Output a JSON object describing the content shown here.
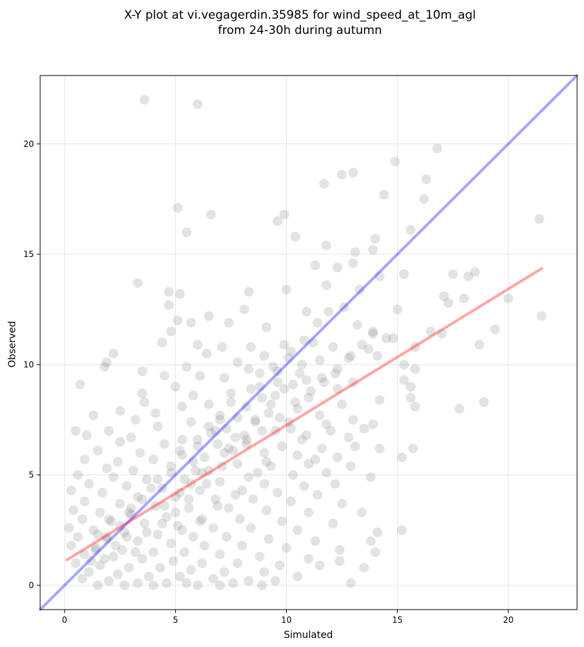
{
  "chart_data": {
    "type": "scatter",
    "title_line1": "X-Y plot at vi.vegagerdin.35985 for wind_speed_at_10m_agl",
    "title_line2": "from 24-30h during autumn",
    "xlabel": "Simulated",
    "ylabel": "Observed",
    "xlim": [
      -1.1,
      23.1
    ],
    "ylim": [
      -1.1,
      23.1
    ],
    "xticks": [
      0,
      5,
      10,
      15,
      20
    ],
    "yticks": [
      0,
      5,
      10,
      15,
      20
    ],
    "grid": true,
    "point_color": "#808080",
    "identity_line": {
      "x": [
        -1.1,
        23.1
      ],
      "y": [
        -1.1,
        23.1
      ],
      "color": "#0000ff"
    },
    "fit_line": {
      "x": [
        0.1,
        21.5
      ],
      "y": [
        1.15,
        14.35
      ],
      "color": "#ff0000"
    },
    "points": [
      [
        3.6,
        22.0
      ],
      [
        6.0,
        21.8
      ],
      [
        16.8,
        19.8
      ],
      [
        14.9,
        19.2
      ],
      [
        13.0,
        18.7
      ],
      [
        12.5,
        18.6
      ],
      [
        16.3,
        18.4
      ],
      [
        11.7,
        18.2
      ],
      [
        14.4,
        17.7
      ],
      [
        16.2,
        17.5
      ],
      [
        5.1,
        17.1
      ],
      [
        6.6,
        16.8
      ],
      [
        9.9,
        16.8
      ],
      [
        9.6,
        16.5
      ],
      [
        21.4,
        16.6
      ],
      [
        15.6,
        16.1
      ],
      [
        5.5,
        16.0
      ],
      [
        14.0,
        15.7
      ],
      [
        10.4,
        15.8
      ],
      [
        11.8,
        15.4
      ],
      [
        13.9,
        15.2
      ],
      [
        13.1,
        15.1
      ],
      [
        13.0,
        14.6
      ],
      [
        12.3,
        14.4
      ],
      [
        17.5,
        14.1
      ],
      [
        18.5,
        14.2
      ],
      [
        15.3,
        14.1
      ],
      [
        11.3,
        14.5
      ],
      [
        14.2,
        14.0
      ],
      [
        18.2,
        14.0
      ],
      [
        3.3,
        13.7
      ],
      [
        10.0,
        13.4
      ],
      [
        4.7,
        13.3
      ],
      [
        8.3,
        13.3
      ],
      [
        11.8,
        13.6
      ],
      [
        13.3,
        13.4
      ],
      [
        5.2,
        13.2
      ],
      [
        17.1,
        13.1
      ],
      [
        18.0,
        13.0
      ],
      [
        20.0,
        13.0
      ],
      [
        4.7,
        12.7
      ],
      [
        8.1,
        12.5
      ],
      [
        15.0,
        12.5
      ],
      [
        10.9,
        12.4
      ],
      [
        12.6,
        12.6
      ],
      [
        17.3,
        12.8
      ],
      [
        21.5,
        12.2
      ],
      [
        7.4,
        11.9
      ],
      [
        6.5,
        12.2
      ],
      [
        13.2,
        11.8
      ],
      [
        5.1,
        12.0
      ],
      [
        5.7,
        11.9
      ],
      [
        9.1,
        11.7
      ],
      [
        16.5,
        11.5
      ],
      [
        19.4,
        11.6
      ],
      [
        4.8,
        11.5
      ],
      [
        13.9,
        11.4
      ],
      [
        14.8,
        11.2
      ],
      [
        15.8,
        10.8
      ],
      [
        17.0,
        11.4
      ],
      [
        4.4,
        11.0
      ],
      [
        6.0,
        10.9
      ],
      [
        7.1,
        10.8
      ],
      [
        8.4,
        10.8
      ],
      [
        9.9,
        10.9
      ],
      [
        11.2,
        11.0
      ],
      [
        12.1,
        10.8
      ],
      [
        13.7,
        10.7
      ],
      [
        2.2,
        10.5
      ],
      [
        18.7,
        10.9
      ],
      [
        6.4,
        10.5
      ],
      [
        9.0,
        10.4
      ],
      [
        10.2,
        10.6
      ],
      [
        11.5,
        10.2
      ],
      [
        12.9,
        10.4
      ],
      [
        14.1,
        10.4
      ],
      [
        1.9,
        10.1
      ],
      [
        7.8,
        10.1
      ],
      [
        10.7,
        10.0
      ],
      [
        15.3,
        10.0
      ],
      [
        1.8,
        9.9
      ],
      [
        5.5,
        9.9
      ],
      [
        8.3,
        9.8
      ],
      [
        9.6,
        9.7
      ],
      [
        12.3,
        9.8
      ],
      [
        15.8,
        9.8
      ],
      [
        3.5,
        9.7
      ],
      [
        4.5,
        9.5
      ],
      [
        6.1,
        9.5
      ],
      [
        7.2,
        9.4
      ],
      [
        10.9,
        9.3
      ],
      [
        11.6,
        9.4
      ],
      [
        13.0,
        9.2
      ],
      [
        0.7,
        9.1
      ],
      [
        15.3,
        9.3
      ],
      [
        5.0,
        9.0
      ],
      [
        8.8,
        9.0
      ],
      [
        10.3,
        9.1
      ],
      [
        12.3,
        8.9
      ],
      [
        15.6,
        9.0
      ],
      [
        3.5,
        8.7
      ],
      [
        5.8,
        8.6
      ],
      [
        7.5,
        8.7
      ],
      [
        9.5,
        8.6
      ],
      [
        11.0,
        8.5
      ],
      [
        14.2,
        8.4
      ],
      [
        15.6,
        8.5
      ],
      [
        3.6,
        8.3
      ],
      [
        5.3,
        8.1
      ],
      [
        6.5,
        8.2
      ],
      [
        8.2,
        8.1
      ],
      [
        10.5,
        8.0
      ],
      [
        12.5,
        8.2
      ],
      [
        15.8,
        8.1
      ],
      [
        18.9,
        8.3
      ],
      [
        2.5,
        7.9
      ],
      [
        4.1,
        7.8
      ],
      [
        7.0,
        7.7
      ],
      [
        9.2,
        7.8
      ],
      [
        11.5,
        7.7
      ],
      [
        13.0,
        7.5
      ],
      [
        1.3,
        7.7
      ],
      [
        3.2,
        7.5
      ],
      [
        5.7,
        7.4
      ],
      [
        8.6,
        7.5
      ],
      [
        10.1,
        7.4
      ],
      [
        11.8,
        7.3
      ],
      [
        13.9,
        7.3
      ],
      [
        17.8,
        8.0
      ],
      [
        0.5,
        7.0
      ],
      [
        2.0,
        7.0
      ],
      [
        4.2,
        7.2
      ],
      [
        6.8,
        7.0
      ],
      [
        9.5,
        7.0
      ],
      [
        12.0,
        7.0
      ],
      [
        13.5,
        7.1
      ],
      [
        1.0,
        6.8
      ],
      [
        3.0,
        6.7
      ],
      [
        5.3,
        6.6
      ],
      [
        7.7,
        6.7
      ],
      [
        10.7,
        6.6
      ],
      [
        12.8,
        6.7
      ],
      [
        14.2,
        6.2
      ],
      [
        15.7,
        6.2
      ],
      [
        2.5,
        6.5
      ],
      [
        4.5,
        6.4
      ],
      [
        6.0,
        6.3
      ],
      [
        8.2,
        6.4
      ],
      [
        9.8,
        6.3
      ],
      [
        11.6,
        6.2
      ],
      [
        13.1,
        6.3
      ],
      [
        1.5,
        6.1
      ],
      [
        3.4,
        6.0
      ],
      [
        5.2,
        6.1
      ],
      [
        7.2,
        6.0
      ],
      [
        9.0,
        6.0
      ],
      [
        10.5,
        5.9
      ],
      [
        12.3,
        5.8
      ],
      [
        15.2,
        5.8
      ],
      [
        0.9,
        5.7
      ],
      [
        2.4,
        5.6
      ],
      [
        4.0,
        5.7
      ],
      [
        5.8,
        5.6
      ],
      [
        7.8,
        5.5
      ],
      [
        9.3,
        5.4
      ],
      [
        11.0,
        5.5
      ],
      [
        12.9,
        5.4
      ],
      [
        1.9,
        5.3
      ],
      [
        3.1,
        5.2
      ],
      [
        4.8,
        5.1
      ],
      [
        6.5,
        5.2
      ],
      [
        8.7,
        5.1
      ],
      [
        10.3,
        5.0
      ],
      [
        11.8,
        5.1
      ],
      [
        13.8,
        4.9
      ],
      [
        0.6,
        5.0
      ],
      [
        2.2,
        4.9
      ],
      [
        3.7,
        4.8
      ],
      [
        5.4,
        4.8
      ],
      [
        7.0,
        4.7
      ],
      [
        9.0,
        4.6
      ],
      [
        10.8,
        4.5
      ],
      [
        12.2,
        4.6
      ],
      [
        1.1,
        4.6
      ],
      [
        2.8,
        4.5
      ],
      [
        4.4,
        4.4
      ],
      [
        6.1,
        4.3
      ],
      [
        8.0,
        4.3
      ],
      [
        9.6,
        4.2
      ],
      [
        11.4,
        4.1
      ],
      [
        0.3,
        4.3
      ],
      [
        1.7,
        4.2
      ],
      [
        3.3,
        4.0
      ],
      [
        5.0,
        4.0
      ],
      [
        6.8,
        3.9
      ],
      [
        8.5,
        3.9
      ],
      [
        10.2,
        3.8
      ],
      [
        12.5,
        3.7
      ],
      [
        0.9,
        3.8
      ],
      [
        2.5,
        3.7
      ],
      [
        4.1,
        3.6
      ],
      [
        5.6,
        3.5
      ],
      [
        7.4,
        3.5
      ],
      [
        9.1,
        3.4
      ],
      [
        11.0,
        3.3
      ],
      [
        13.4,
        3.3
      ],
      [
        0.4,
        3.4
      ],
      [
        1.6,
        3.3
      ],
      [
        3.0,
        3.2
      ],
      [
        4.6,
        3.1
      ],
      [
        6.2,
        3.0
      ],
      [
        7.9,
        3.0
      ],
      [
        9.8,
        2.9
      ],
      [
        12.1,
        2.8
      ],
      [
        0.8,
        3.0
      ],
      [
        2.1,
        2.9
      ],
      [
        3.6,
        2.8
      ],
      [
        5.1,
        2.7
      ],
      [
        6.7,
        2.6
      ],
      [
        8.4,
        2.6
      ],
      [
        10.5,
        2.5
      ],
      [
        14.1,
        2.4
      ],
      [
        15.2,
        2.5
      ],
      [
        0.2,
        2.6
      ],
      [
        1.3,
        2.5
      ],
      [
        2.7,
        2.4
      ],
      [
        4.2,
        2.3
      ],
      [
        5.8,
        2.2
      ],
      [
        7.3,
        2.2
      ],
      [
        9.2,
        2.1
      ],
      [
        11.3,
        2.0
      ],
      [
        13.8,
        2.0
      ],
      [
        0.6,
        2.2
      ],
      [
        1.9,
        2.1
      ],
      [
        3.3,
        2.0
      ],
      [
        4.8,
        1.9
      ],
      [
        6.3,
        1.8
      ],
      [
        8.0,
        1.8
      ],
      [
        10.0,
        1.7
      ],
      [
        12.4,
        1.6
      ],
      [
        0.3,
        1.8
      ],
      [
        1.4,
        1.7
      ],
      [
        2.6,
        1.6
      ],
      [
        4.0,
        1.5
      ],
      [
        5.4,
        1.5
      ],
      [
        7.0,
        1.4
      ],
      [
        8.8,
        1.3
      ],
      [
        11.0,
        1.2
      ],
      [
        14.0,
        1.5
      ],
      [
        0.9,
        1.4
      ],
      [
        2.2,
        1.3
      ],
      [
        3.5,
        1.2
      ],
      [
        4.9,
        1.1
      ],
      [
        6.2,
        1.0
      ],
      [
        7.8,
        1.0
      ],
      [
        9.7,
        0.9
      ],
      [
        12.4,
        1.1
      ],
      [
        0.5,
        1.0
      ],
      [
        1.6,
        0.9
      ],
      [
        2.9,
        0.8
      ],
      [
        4.3,
        0.8
      ],
      [
        5.7,
        0.7
      ],
      [
        7.2,
        0.6
      ],
      [
        9.0,
        0.6
      ],
      [
        11.5,
        0.9
      ],
      [
        13.5,
        0.8
      ],
      [
        1.1,
        0.6
      ],
      [
        2.4,
        0.5
      ],
      [
        3.8,
        0.4
      ],
      [
        5.2,
        0.4
      ],
      [
        6.7,
        0.3
      ],
      [
        8.3,
        0.2
      ],
      [
        10.5,
        0.4
      ],
      [
        0.8,
        0.3
      ],
      [
        2.0,
        0.2
      ],
      [
        3.3,
        0.1
      ],
      [
        4.6,
        0.1
      ],
      [
        6.0,
        0.0
      ],
      [
        7.6,
        0.1
      ],
      [
        9.5,
        0.2
      ],
      [
        12.9,
        0.1
      ],
      [
        1.5,
        0.0
      ],
      [
        2.7,
        0.0
      ],
      [
        4.0,
        0.0
      ],
      [
        5.5,
        0.1
      ],
      [
        7.0,
        0.0
      ],
      [
        8.9,
        0.0
      ],
      [
        3.0,
        3.5
      ],
      [
        2.0,
        3.0
      ],
      [
        1.5,
        2.3
      ],
      [
        2.3,
        1.8
      ],
      [
        1.8,
        1.2
      ],
      [
        3.2,
        1.5
      ],
      [
        2.8,
        2.2
      ],
      [
        1.2,
        1.1
      ],
      [
        3.7,
        2.4
      ],
      [
        4.4,
        2.8
      ],
      [
        5.0,
        3.3
      ],
      [
        5.6,
        3.9
      ],
      [
        6.4,
        4.6
      ],
      [
        7.1,
        5.4
      ],
      [
        7.6,
        6.1
      ],
      [
        8.1,
        6.8
      ],
      [
        8.6,
        7.4
      ],
      [
        9.3,
        8.2
      ],
      [
        9.9,
        8.9
      ],
      [
        10.6,
        9.6
      ],
      [
        6.9,
        6.4
      ],
      [
        7.3,
        7.1
      ],
      [
        7.8,
        7.6
      ],
      [
        6.3,
        5.8
      ],
      [
        5.9,
        5.2
      ],
      [
        6.6,
        6.9
      ],
      [
        8.9,
        8.5
      ],
      [
        9.6,
        9.2
      ],
      [
        10.1,
        10.3
      ],
      [
        10.8,
        11.1
      ],
      [
        11.4,
        11.9
      ],
      [
        11.9,
        12.4
      ],
      [
        9.4,
        9.9
      ],
      [
        8.8,
        9.6
      ],
      [
        8.4,
        8.9
      ],
      [
        7.5,
        8.3
      ],
      [
        7.0,
        7.5
      ],
      [
        6.5,
        7.2
      ],
      [
        6.0,
        6.6
      ],
      [
        5.3,
        5.9
      ],
      [
        4.8,
        5.4
      ],
      [
        4.2,
        4.8
      ],
      [
        3.9,
        4.4
      ],
      [
        3.5,
        3.9
      ],
      [
        2.9,
        3.3
      ],
      [
        2.5,
        2.7
      ],
      [
        1.9,
        2.2
      ],
      [
        1.4,
        1.6
      ],
      [
        4.5,
        3.6
      ],
      [
        5.2,
        4.2
      ],
      [
        5.7,
        4.6
      ],
      [
        6.2,
        5.1
      ],
      [
        7.4,
        6.2
      ],
      [
        8.2,
        6.6
      ],
      [
        8.9,
        7.0
      ],
      [
        9.7,
        7.6
      ],
      [
        10.4,
        8.3
      ],
      [
        11.1,
        8.8
      ],
      [
        11.7,
        9.2
      ],
      [
        12.2,
        9.6
      ],
      [
        12.8,
        10.3
      ],
      [
        13.4,
        10.9
      ],
      [
        13.9,
        11.5
      ],
      [
        14.5,
        11.2
      ],
      [
        10.2,
        7.1
      ],
      [
        10.9,
        6.8
      ],
      [
        11.3,
        5.7
      ],
      [
        9.1,
        5.6
      ],
      [
        8.3,
        4.9
      ],
      [
        7.7,
        4.1
      ],
      [
        6.9,
        3.6
      ],
      [
        6.1,
        2.9
      ],
      [
        5.3,
        2.5
      ]
    ]
  }
}
